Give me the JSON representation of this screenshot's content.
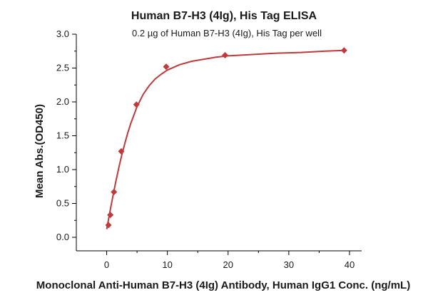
{
  "chart_data": {
    "type": "scatter",
    "title": "Human B7-H3 (4Ig), His Tag ELISA",
    "subtitle": "0.2 µg of Human B7-H3 (4Ig), His Tag per well",
    "xlabel": "Monoclonal Anti-Human B7-H3 (4Ig) Antibody, Human IgG1 Conc. (ng/mL)",
    "ylabel": "Mean Abs.(OD450)",
    "xlim": [
      -5,
      42
    ],
    "ylim": [
      -0.2,
      3.0
    ],
    "xticks": [
      "0",
      "10",
      "20",
      "30",
      "40"
    ],
    "yticks": [
      "0.0",
      "0.5",
      "1.0",
      "1.5",
      "2.0",
      "2.5",
      "3.0"
    ],
    "grid": false,
    "series": [
      {
        "x": [
          0.3,
          0.6,
          1.2,
          2.4,
          4.9,
          9.8,
          19.5,
          39.1
        ],
        "y": [
          0.18,
          0.33,
          0.67,
          1.27,
          1.96,
          2.52,
          2.69,
          2.76
        ],
        "marker": "diamond"
      }
    ],
    "fit_curve": {
      "x": [
        0,
        0.5,
        1,
        1.5,
        2,
        2.5,
        3,
        3.5,
        4,
        5,
        6,
        7,
        8,
        9,
        10,
        12,
        14,
        16,
        18,
        20,
        24,
        28,
        32,
        36,
        39.1
      ],
      "y": [
        0.12,
        0.36,
        0.6,
        0.82,
        1.03,
        1.22,
        1.39,
        1.55,
        1.69,
        1.93,
        2.11,
        2.24,
        2.34,
        2.41,
        2.47,
        2.55,
        2.6,
        2.63,
        2.66,
        2.68,
        2.7,
        2.72,
        2.73,
        2.75,
        2.76
      ]
    },
    "colors": {
      "marker": "#c0393b",
      "curve": "#c0393b"
    }
  }
}
